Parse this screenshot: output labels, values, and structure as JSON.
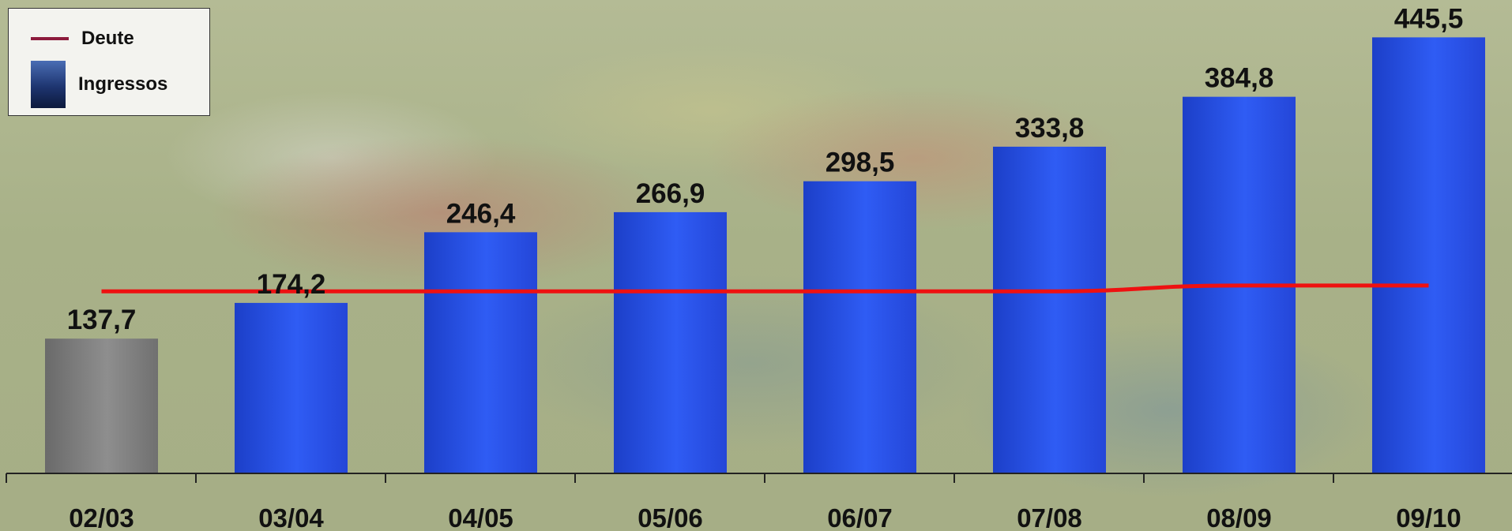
{
  "chart_data": {
    "type": "bar",
    "categories": [
      "02/03",
      "03/04",
      "04/05",
      "05/06",
      "06/07",
      "07/08",
      "08/09",
      "09/10"
    ],
    "series": [
      {
        "name": "Ingressos",
        "values": [
          137.7,
          174.2,
          246.4,
          266.9,
          298.5,
          333.8,
          384.8,
          445.5
        ],
        "labels": [
          "137,7",
          "174,2",
          "246,4",
          "266,9",
          "298,5",
          "333,8",
          "384,8",
          "445,5"
        ],
        "color": "#2a55ec",
        "first_bar_color": "#7a7a7a"
      },
      {
        "name": "Deute",
        "type": "line",
        "values": [
          186,
          186,
          186,
          186,
          186,
          186,
          192,
          192
        ],
        "color": "#ee1111"
      }
    ],
    "ylim": [
      0,
      490
    ],
    "legend": "top-left",
    "grid": false
  },
  "legend": {
    "line_label": "Deute",
    "bar_label": "Ingressos",
    "line_color": "#8c1a3c"
  }
}
